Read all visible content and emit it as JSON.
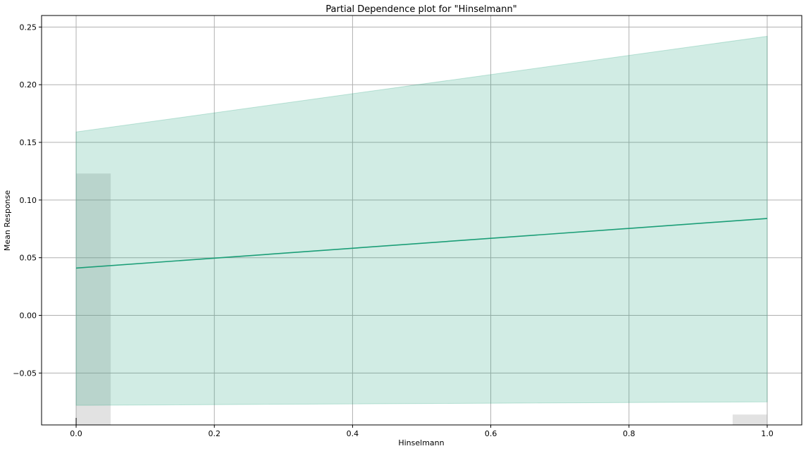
{
  "chart_data": {
    "type": "line",
    "title": "Partial Dependence plot for \"Hinselmann\"",
    "xlabel": "Hinselmann",
    "ylabel": "Mean Response",
    "xlim": [
      -0.05,
      1.05
    ],
    "ylim": [
      -0.095,
      0.26
    ],
    "x_ticks": [
      0.0,
      0.2,
      0.4,
      0.6,
      0.8,
      1.0
    ],
    "x_tick_labels": [
      "0.0",
      "0.2",
      "0.4",
      "0.6",
      "0.8",
      "1.0"
    ],
    "y_ticks": [
      -0.05,
      0.0,
      0.05,
      0.1,
      0.15,
      0.2,
      0.25
    ],
    "y_tick_labels": [
      "−0.05",
      "0.00",
      "0.05",
      "0.10",
      "0.15",
      "0.20",
      "0.25"
    ],
    "grid": true,
    "series": [
      {
        "x": [
          0.0,
          1.0
        ],
        "y": [
          0.041,
          0.084
        ],
        "lower": [
          -0.078,
          -0.075
        ],
        "upper": [
          0.159,
          0.242
        ],
        "color": "#1b9e77",
        "band_color": "#1b9e77"
      }
    ],
    "histogram": [
      {
        "x_start": 0.0,
        "x_end": 0.05,
        "value": 0.123
      },
      {
        "x_start": 0.95,
        "x_end": 1.0,
        "value": -0.086
      }
    ],
    "histogram_baseline": -0.095,
    "rug_x": [
      0.0
    ]
  }
}
